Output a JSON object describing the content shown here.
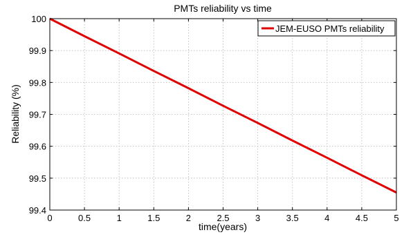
{
  "chart_data": {
    "type": "line",
    "title": "PMTs reliability vs time",
    "xlabel": "time(years)",
    "ylabel": "Reliability (%)",
    "xlim": [
      0,
      5
    ],
    "ylim": [
      99.4,
      100
    ],
    "xticks": [
      "0",
      "0.5",
      "1",
      "1.5",
      "2",
      "2.5",
      "3",
      "3.5",
      "4",
      "4.5",
      "5"
    ],
    "yticks": [
      "99.4",
      "99.5",
      "99.6",
      "99.7",
      "99.8",
      "99.9",
      "100"
    ],
    "grid": true,
    "legend_position": "top-right",
    "series": [
      {
        "name": "JEM-EUSO PMTs reliability",
        "color": "#e00000",
        "x": [
          0,
          0.5,
          1,
          1.5,
          2,
          2.5,
          3,
          3.5,
          4,
          4.5,
          5
        ],
        "y": [
          100,
          99.945,
          99.891,
          99.836,
          99.782,
          99.727,
          99.673,
          99.618,
          99.564,
          99.509,
          99.455
        ]
      }
    ]
  }
}
